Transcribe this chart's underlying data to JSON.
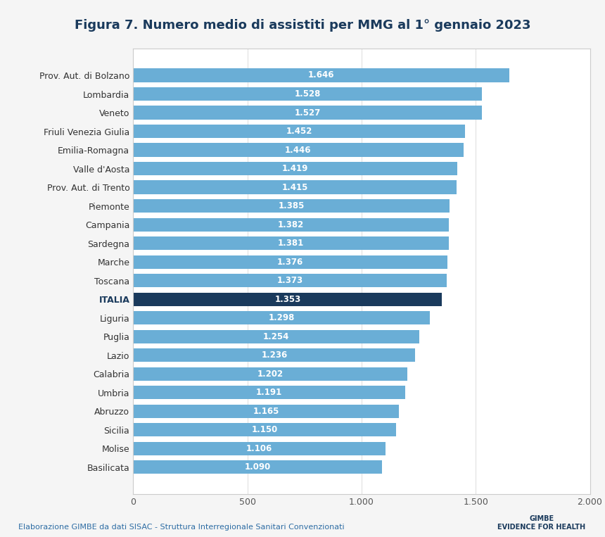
{
  "title": "Figura 7. Numero medio di assistiti per MMG al 1° gennaio 2023",
  "categories": [
    "Prov. Aut. di Bolzano",
    "Lombardia",
    "Veneto",
    "Friuli Venezia Giulia",
    "Emilia-Romagna",
    "Valle d'Aosta",
    "Prov. Aut. di Trento",
    "Piemonte",
    "Campania",
    "Sardegna",
    "Marche",
    "Toscana",
    "ITALIA",
    "Liguria",
    "Puglia",
    "Lazio",
    "Calabria",
    "Umbria",
    "Abruzzo",
    "Sicilia",
    "Molise",
    "Basilicata"
  ],
  "values": [
    1646,
    1528,
    1527,
    1452,
    1446,
    1419,
    1415,
    1385,
    1382,
    1381,
    1376,
    1373,
    1353,
    1298,
    1254,
    1236,
    1202,
    1191,
    1165,
    1150,
    1106,
    1090
  ],
  "labels": [
    "1.646",
    "1.528",
    "1.527",
    "1.452",
    "1.446",
    "1.419",
    "1.415",
    "1.385",
    "1.382",
    "1.381",
    "1.376",
    "1.373",
    "1.353",
    "1.298",
    "1.254",
    "1.236",
    "1.202",
    "1.191",
    "1.165",
    "1.150",
    "1.106",
    "1.090"
  ],
  "bar_colors": [
    "#6aaed6",
    "#6aaed6",
    "#6aaed6",
    "#6aaed6",
    "#6aaed6",
    "#6aaed6",
    "#6aaed6",
    "#6aaed6",
    "#6aaed6",
    "#6aaed6",
    "#6aaed6",
    "#6aaed6",
    "#1a3a5c",
    "#6aaed6",
    "#6aaed6",
    "#6aaed6",
    "#6aaed6",
    "#6aaed6",
    "#6aaed6",
    "#6aaed6",
    "#6aaed6",
    "#6aaed6"
  ],
  "italia_label": "ITALIA",
  "xlim": [
    0,
    2000
  ],
  "xticks": [
    0,
    500,
    1000,
    1500,
    2000
  ],
  "xtick_labels": [
    "0",
    "500",
    "1.000",
    "1.500",
    "2.000"
  ],
  "background_color": "#f5f5f5",
  "plot_bg_color": "#ffffff",
  "title_color": "#1a3a5c",
  "title_fontsize": 13,
  "bar_label_fontsize": 8.5,
  "category_fontsize": 9,
  "footer_text": "Elaborazione GIMBE da dati SISAC - Struttura Interregionale Sanitari Convenzionati",
  "footer_color": "#2e6da4",
  "footer_fontsize": 8,
  "gimbe_text": "GIMBE\nEVIDENCE FOR HEALTH",
  "gimbe_color": "#1a3a5c"
}
